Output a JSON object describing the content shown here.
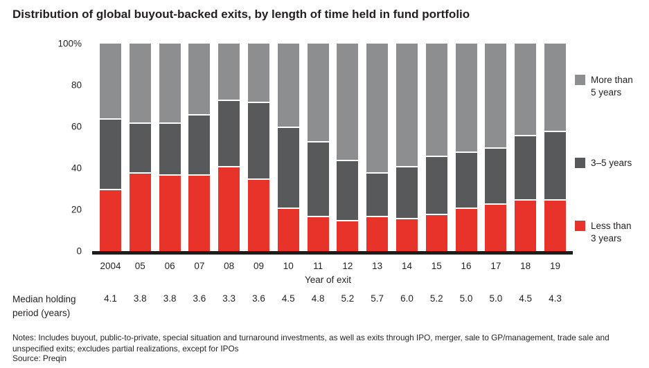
{
  "title": "Distribution of global buyout-backed exits, by length of time held in fund portfolio",
  "chart_data": {
    "type": "bar",
    "subtype": "stacked-percent",
    "title": "Distribution of global buyout-backed exits, by length of time held in fund portfolio",
    "categories": [
      "2004",
      "05",
      "06",
      "07",
      "08",
      "09",
      "10",
      "11",
      "12",
      "13",
      "14",
      "15",
      "16",
      "17",
      "18",
      "19"
    ],
    "series": [
      {
        "key": "less-than-3-years",
        "name": "Less than 3 years",
        "label_lines": [
          "Less than",
          "3 years"
        ],
        "color": "#e8332a",
        "values": [
          30,
          38,
          37,
          37,
          41,
          35,
          21,
          17,
          15,
          17,
          16,
          18,
          21,
          23,
          25,
          25
        ]
      },
      {
        "key": "3-5-years",
        "name": "3–5 years",
        "label_lines": [
          "3–5 years"
        ],
        "color": "#58595b",
        "values": [
          34,
          24,
          25,
          29,
          32,
          37,
          39,
          36,
          29,
          21,
          25,
          28,
          27,
          27,
          31,
          33
        ]
      },
      {
        "key": "more-than-5-years",
        "name": "More than 5 years",
        "label_lines": [
          "More than",
          "5 years"
        ],
        "color": "#8c8e90",
        "values": [
          36,
          38,
          38,
          34,
          27,
          28,
          40,
          47,
          56,
          62,
          59,
          54,
          52,
          50,
          44,
          42
        ]
      }
    ],
    "xlabel": "Year of exit",
    "ylabel": "",
    "ylim": [
      0,
      100
    ],
    "yticks": [
      "100%",
      "80",
      "60",
      "40",
      "20",
      "0"
    ],
    "grid": false,
    "legend_position": "right"
  },
  "median_row": {
    "label_line1": "Median holding",
    "label_line2": "period (years)",
    "values": [
      "4.1",
      "3.8",
      "3.8",
      "3.6",
      "3.3",
      "3.6",
      "4.5",
      "4.8",
      "5.2",
      "5.7",
      "6.0",
      "5.2",
      "5.0",
      "5.0",
      "4.5",
      "4.3"
    ]
  },
  "footnotes": {
    "notes": "Notes: Includes buyout, public-to-private, special situation and turnaround investments, as well as exits through IPO, merger, sale to GP/management, trade sale and unspecified exits; excludes partial realizations, except for IPOs",
    "source": "Source: Preqin"
  }
}
